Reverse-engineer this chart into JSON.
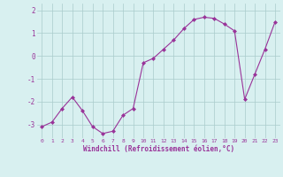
{
  "x": [
    0,
    1,
    2,
    3,
    4,
    5,
    6,
    7,
    8,
    9,
    10,
    11,
    12,
    13,
    14,
    15,
    16,
    17,
    18,
    19,
    20,
    21,
    22,
    23
  ],
  "y": [
    -3.1,
    -2.9,
    -2.3,
    -1.8,
    -2.4,
    -3.1,
    -3.4,
    -3.3,
    -2.6,
    -2.3,
    -0.3,
    -0.1,
    0.3,
    0.7,
    1.2,
    1.6,
    1.7,
    1.65,
    1.4,
    1.1,
    -1.9,
    -0.8,
    0.3,
    1.5
  ],
  "line_color": "#993399",
  "marker": "D",
  "marker_size": 2,
  "background_color": "#d8f0f0",
  "grid_color": "#aacccc",
  "xlabel": "Windchill (Refroidissement éolien,°C)",
  "xlabel_color": "#993399",
  "tick_color": "#993399",
  "ylim": [
    -3.6,
    2.3
  ],
  "xlim": [
    -0.5,
    23.5
  ],
  "yticks": [
    -3,
    -2,
    -1,
    0,
    1,
    2
  ],
  "xticks": [
    0,
    1,
    2,
    3,
    4,
    5,
    6,
    7,
    8,
    9,
    10,
    11,
    12,
    13,
    14,
    15,
    16,
    17,
    18,
    19,
    20,
    21,
    22,
    23
  ]
}
